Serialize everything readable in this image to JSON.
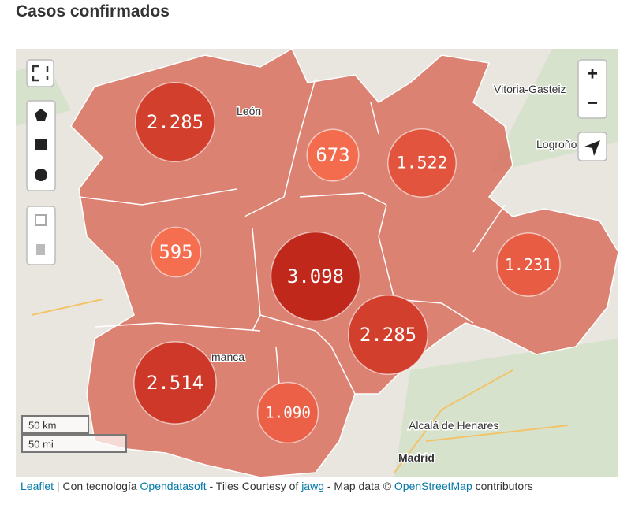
{
  "title": "Casos confirmados",
  "clusters": [
    {
      "label": "2.285",
      "value": 2285
    },
    {
      "label": "673",
      "value": 673
    },
    {
      "label": "1.522",
      "value": 1522
    },
    {
      "label": "595",
      "value": 595
    },
    {
      "label": "3.098",
      "value": 3098
    },
    {
      "label": "1.231",
      "value": 1231
    },
    {
      "label": "2.285",
      "value": 2285
    },
    {
      "label": "2.514",
      "value": 2514
    },
    {
      "label": "1.090",
      "value": 1090
    }
  ],
  "places": [
    "León",
    "Vitoria-Gasteiz",
    "Logroño",
    "manca",
    "Alcalá de Henares",
    "Madrid"
  ],
  "controls": {
    "zoom_in": "+",
    "zoom_out": "−"
  },
  "scale": {
    "km": "50 km",
    "mi": "50 mi"
  },
  "attribution": [
    "Leaflet",
    " | Con tecnología ",
    "Opendatasoft",
    " - Tiles Courtesy of ",
    "jawg",
    " - Map data © ",
    "OpenStreetMap",
    " contributors"
  ]
}
